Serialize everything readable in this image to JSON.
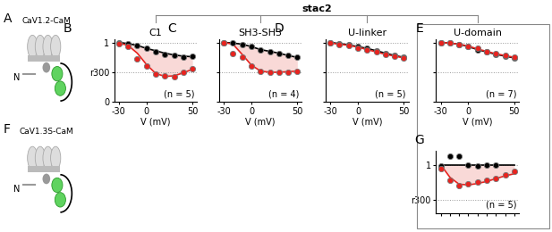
{
  "header": "stac2",
  "cartoons": [
    {
      "letter": "A",
      "label": "CaV1.2-CaM",
      "terminus": "N"
    },
    {
      "letter": "F",
      "label": "CaV1.3S-CaM",
      "terminus": "N"
    }
  ],
  "chart_data": [
    {
      "type": "line",
      "title": "C1",
      "annotations": [
        "B",
        "(n = 5)"
      ],
      "x_label": "V (mV)",
      "x": [
        -30,
        -20,
        -10,
        0,
        10,
        20,
        30,
        40,
        50
      ],
      "xlim": [
        -35,
        55
      ],
      "xticks": [
        -30,
        0,
        50
      ],
      "ylim": [
        0,
        1.05
      ],
      "yticks": [
        0,
        {
          "value": 0.5,
          "label": "r300"
        },
        1
      ],
      "grid": true,
      "tick_labels": true,
      "series": [
        {
          "type": "line",
          "color": "#000000",
          "line_style": "solid",
          "values": [
            1.0,
            0.98,
            0.95,
            0.9,
            0.86,
            0.82,
            0.79,
            0.77,
            0.76
          ]
        },
        {
          "type": "line",
          "color": "#e8231f",
          "line_style": "solid",
          "values": [
            0.99,
            0.95,
            0.82,
            0.63,
            0.48,
            0.43,
            0.44,
            0.49,
            0.55
          ]
        },
        {
          "type": "scatter",
          "color": "#000000",
          "marker": "o",
          "values": [
            1.0,
            0.98,
            0.95,
            0.9,
            0.85,
            0.8,
            0.78,
            0.76,
            0.77
          ]
        },
        {
          "type": "scatter",
          "color": "#e8231f",
          "marker": "o",
          "values": [
            0.98,
            0.93,
            0.72,
            0.6,
            0.47,
            0.44,
            0.43,
            0.5,
            0.56
          ]
        }
      ]
    },
    {
      "type": "line",
      "title": "SH3-SH3",
      "annotations": [
        "C",
        "(n = 4)"
      ],
      "x_label": "V (mV)",
      "x": [
        -30,
        -20,
        -10,
        0,
        10,
        20,
        30,
        40,
        50
      ],
      "xlim": [
        -35,
        55
      ],
      "xticks": [
        -30,
        0,
        50
      ],
      "ylim": [
        0,
        1.05
      ],
      "yticks": [
        0,
        {
          "value": 0.5,
          "label": "r300"
        },
        1
      ],
      "grid": true,
      "tick_labels": "x",
      "series": [
        {
          "type": "line",
          "color": "#000000",
          "line_style": "solid",
          "values": [
            1.0,
            0.99,
            0.97,
            0.93,
            0.88,
            0.85,
            0.82,
            0.78,
            0.75
          ]
        },
        {
          "type": "line",
          "color": "#e8231f",
          "line_style": "solid",
          "values": [
            1.0,
            0.97,
            0.8,
            0.62,
            0.52,
            0.5,
            0.5,
            0.51,
            0.52
          ]
        },
        {
          "type": "scatter",
          "color": "#000000",
          "marker": "o",
          "values": [
            1.0,
            1.0,
            0.97,
            0.93,
            0.88,
            0.85,
            0.82,
            0.78,
            0.75
          ]
        },
        {
          "type": "scatter",
          "color": "#e8231f",
          "marker": "o",
          "values": [
            1.0,
            0.82,
            0.75,
            0.6,
            0.52,
            0.5,
            0.5,
            0.5,
            0.52
          ]
        }
      ]
    },
    {
      "type": "line",
      "title": "U-linker",
      "annotations": [
        "D",
        "(n = 5)"
      ],
      "x_label": "V (mV)",
      "x": [
        -30,
        -20,
        -10,
        0,
        10,
        20,
        30,
        40,
        50
      ],
      "xlim": [
        -35,
        55
      ],
      "xticks": [
        -30,
        0,
        50
      ],
      "ylim": [
        0,
        1.05
      ],
      "yticks": [
        0,
        {
          "value": 0.5,
          "label": "r300"
        },
        1
      ],
      "grid": true,
      "tick_labels": "x",
      "series": [
        {
          "type": "line",
          "color": "#000000",
          "line_style": "solid",
          "values": [
            1.0,
            0.98,
            0.96,
            0.93,
            0.9,
            0.86,
            0.82,
            0.78,
            0.75
          ]
        },
        {
          "type": "line",
          "color": "#e8231f",
          "line_style": "solid",
          "values": [
            0.99,
            0.97,
            0.95,
            0.92,
            0.88,
            0.84,
            0.8,
            0.77,
            0.74
          ]
        },
        {
          "type": "scatter",
          "color": "#000000",
          "marker": "o",
          "values": [
            1.0,
            0.98,
            0.96,
            0.93,
            0.9,
            0.86,
            0.82,
            0.78,
            0.75
          ]
        },
        {
          "type": "scatter",
          "color": "#e8231f",
          "marker": "o",
          "values": [
            0.99,
            0.97,
            0.95,
            0.91,
            0.88,
            0.84,
            0.8,
            0.77,
            0.74
          ]
        }
      ]
    },
    {
      "type": "line",
      "title": "U-domain",
      "annotations": [
        "E",
        "(n = 7)"
      ],
      "x_label": "V (mV)",
      "x": [
        -30,
        -20,
        -10,
        0,
        10,
        20,
        30,
        40,
        50
      ],
      "xlim": [
        -35,
        55
      ],
      "xticks": [
        -30,
        0,
        50
      ],
      "ylim": [
        0,
        1.05
      ],
      "yticks": [
        0,
        {
          "value": 0.5,
          "label": "r300"
        },
        1
      ],
      "grid": true,
      "tick_labels": "x",
      "series": [
        {
          "type": "line",
          "color": "#000000",
          "line_style": "solid",
          "values": [
            1.0,
            0.99,
            0.97,
            0.93,
            0.88,
            0.84,
            0.8,
            0.77,
            0.74
          ]
        },
        {
          "type": "line",
          "color": "#e8231f",
          "line_style": "solid",
          "values": [
            1.0,
            0.99,
            0.97,
            0.94,
            0.89,
            0.85,
            0.81,
            0.78,
            0.75
          ]
        },
        {
          "type": "scatter",
          "color": "#000000",
          "marker": "o",
          "values": [
            1.0,
            0.99,
            0.97,
            0.93,
            0.87,
            0.84,
            0.8,
            0.77,
            0.74
          ]
        },
        {
          "type": "scatter",
          "color": "#e8231f",
          "marker": "o",
          "values": [
            1.0,
            0.99,
            0.97,
            0.94,
            0.9,
            0.85,
            0.81,
            0.78,
            0.75
          ]
        }
      ]
    },
    {
      "type": "line",
      "annotations": [
        "G",
        "(n = 5)"
      ],
      "x": [
        -30,
        -20,
        -10,
        0,
        10,
        20,
        30,
        40,
        50
      ],
      "xlim": [
        -35,
        55
      ],
      "xticks": [
        -30,
        -20,
        -10,
        0,
        10,
        20,
        30,
        40,
        50
      ],
      "ylim": [
        0.3,
        1.2
      ],
      "yticks": [
        {
          "value": 0.5,
          "label": "r300"
        },
        1
      ],
      "grid": true,
      "tick_labels": "y",
      "series": [
        {
          "type": "line",
          "color": "#000000",
          "line_style": "solid",
          "values": [
            1.0,
            1.0,
            1.0,
            1.0,
            1.0,
            1.0,
            1.0,
            1.0,
            1.0
          ]
        },
        {
          "type": "line",
          "color": "#e8231f",
          "line_style": "solid",
          "values": [
            1.0,
            0.82,
            0.72,
            0.71,
            0.73,
            0.76,
            0.8,
            0.84,
            0.87
          ]
        },
        {
          "type": "scatter",
          "color": "#000000",
          "marker": "o",
          "values": [
            0.98,
            1.12,
            1.12,
            1.0,
            0.98,
            1.0,
            1.0,
            null,
            null
          ],
          "errors": [
            null,
            0.04,
            0.04,
            null,
            null,
            null,
            null,
            null,
            null
          ]
        },
        {
          "type": "scatter",
          "color": "#e8231f",
          "marker": "o",
          "values": [
            0.95,
            0.78,
            0.7,
            0.72,
            0.75,
            0.78,
            0.8,
            0.85,
            0.9
          ]
        }
      ]
    }
  ]
}
